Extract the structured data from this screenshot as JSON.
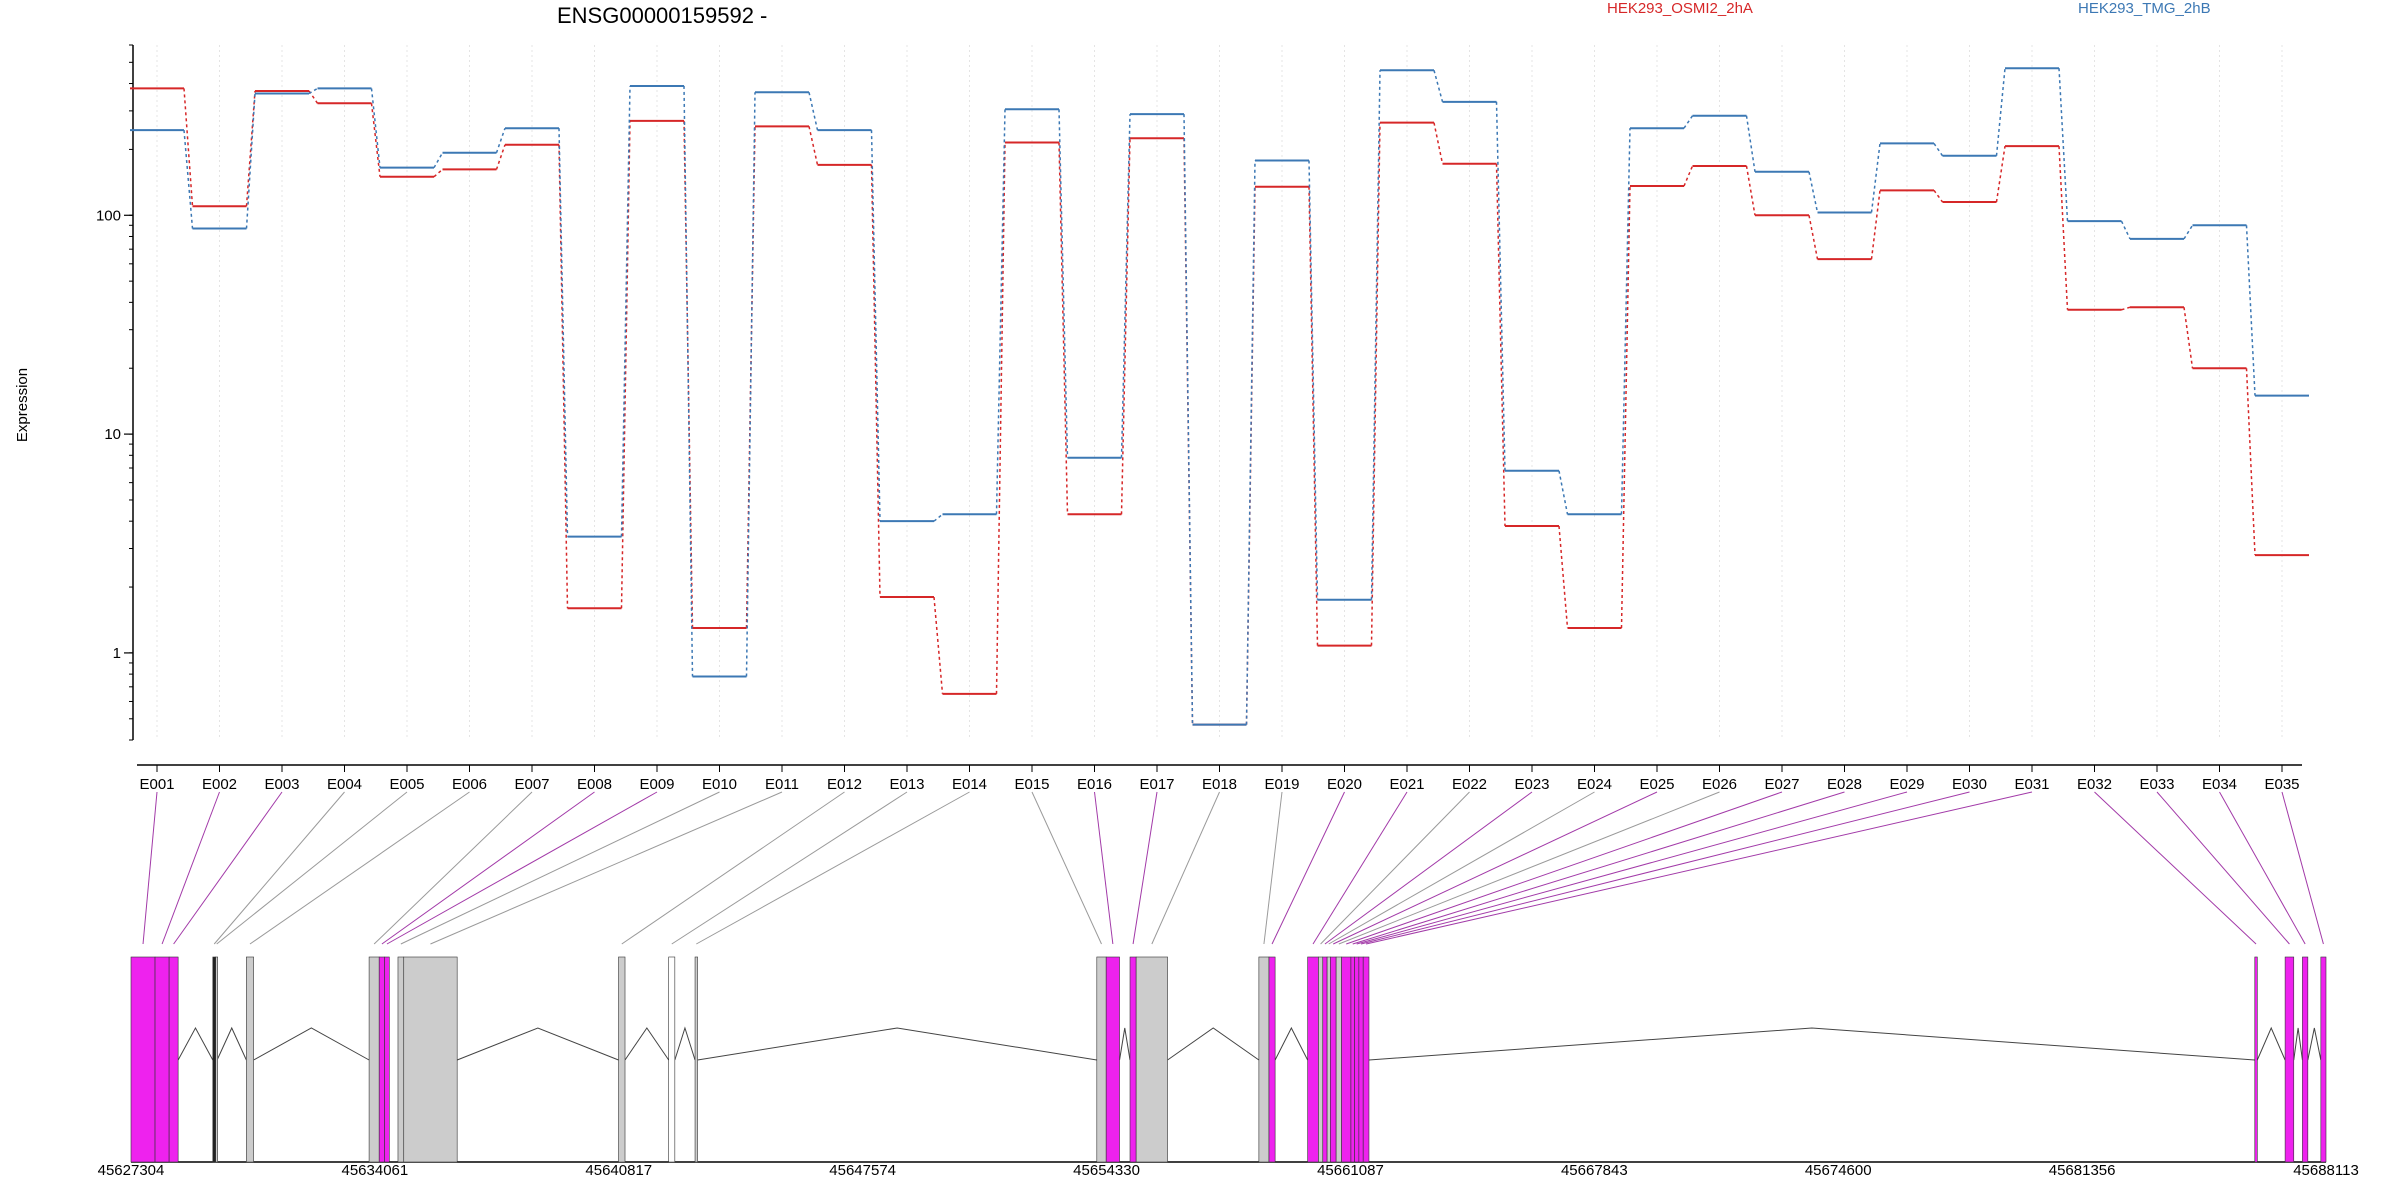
{
  "chart_data": {
    "type": "line",
    "title": "ENSG00000159592 -",
    "ylabel": "Expression",
    "xlabel": "",
    "y_scale": "log",
    "ylim": [
      0.4,
      600
    ],
    "yticks": [
      1,
      10,
      100
    ],
    "ytick_labels": [
      "1",
      "10",
      "100"
    ],
    "grid": "vertical dotted lines at each exon",
    "legend_placement": "top-right",
    "categories": [
      "E001",
      "E002",
      "E003",
      "E004",
      "E005",
      "E006",
      "E007",
      "E008",
      "E009",
      "E010",
      "E011",
      "E012",
      "E013",
      "E014",
      "E015",
      "E016",
      "E017",
      "E018",
      "E019",
      "E020",
      "E021",
      "E022",
      "E023",
      "E024",
      "E025",
      "E026",
      "E027",
      "E028",
      "E029",
      "E030",
      "E031",
      "E032",
      "E033",
      "E034",
      "E035"
    ],
    "series": [
      {
        "name": "HEK293_OSMI2_2hA",
        "color": "#d62728",
        "values": [
          380,
          110,
          370,
          325,
          150,
          162,
          210,
          1.6,
          270,
          1.3,
          255,
          170,
          1.8,
          0.65,
          215,
          4.3,
          225,
          0.47,
          135,
          1.08,
          265,
          172,
          3.8,
          1.3,
          136,
          168,
          100,
          63,
          130,
          115,
          207,
          37,
          38,
          20,
          2.8
        ]
      },
      {
        "name": "HEK293_TMG_2hB",
        "color": "#3c78b4",
        "values": [
          245,
          87,
          360,
          380,
          165,
          193,
          250,
          3.4,
          390,
          0.78,
          365,
          245,
          4.0,
          4.3,
          305,
          7.8,
          290,
          0.47,
          178,
          1.75,
          460,
          330,
          6.8,
          4.3,
          250,
          285,
          158,
          103,
          213,
          187,
          470,
          94,
          78,
          90,
          15
        ]
      }
    ],
    "gene_model": {
      "coordinate_range": [
        45627304,
        45688113
      ],
      "tick_labels": [
        "45627304",
        "45634061",
        "45640817",
        "45647574",
        "45654330",
        "45661087",
        "45667843",
        "45674600",
        "45681356",
        "45688113"
      ],
      "exons": [
        {
          "name": "E001",
          "start": 45627304,
          "end": 45627970,
          "color": "#ee22ee"
        },
        {
          "name": "E002",
          "start": 45627970,
          "end": 45628360,
          "color": "#ee22ee"
        },
        {
          "name": "E003",
          "start": 45628360,
          "end": 45628610,
          "color": "#ee22ee"
        },
        {
          "name": "E004",
          "start": 45629570,
          "end": 45629650,
          "color": "#222222"
        },
        {
          "name": "E005",
          "start": 45629650,
          "end": 45629690,
          "color": "#cccccc"
        },
        {
          "name": "E006",
          "start": 45630500,
          "end": 45630700,
          "color": "#cccccc"
        },
        {
          "name": "E007",
          "start": 45633900,
          "end": 45634180,
          "color": "#cccccc"
        },
        {
          "name": "E008",
          "start": 45634180,
          "end": 45634330,
          "color": "#ee22ee"
        },
        {
          "name": "E009",
          "start": 45634330,
          "end": 45634460,
          "color": "#ee22ee"
        },
        {
          "name": "E010",
          "start": 45634700,
          "end": 45634860,
          "color": "#cccccc"
        },
        {
          "name": "E011",
          "start": 45634860,
          "end": 45636340,
          "color": "#cccccc"
        },
        {
          "name": "E012",
          "start": 45640810,
          "end": 45640990,
          "color": "#cccccc"
        },
        {
          "name": "E013",
          "start": 45642200,
          "end": 45642370,
          "color": "#ffffff"
        },
        {
          "name": "E014",
          "start": 45642930,
          "end": 45643000,
          "color": "#cccccc"
        },
        {
          "name": "E015",
          "start": 45654060,
          "end": 45654320,
          "color": "#cccccc"
        },
        {
          "name": "E016",
          "start": 45654320,
          "end": 45654690,
          "color": "#ee22ee"
        },
        {
          "name": "E017",
          "start": 45654980,
          "end": 45655150,
          "color": "#ee22ee"
        },
        {
          "name": "E018",
          "start": 45655150,
          "end": 45656020,
          "color": "#cccccc"
        },
        {
          "name": "E019",
          "start": 45658550,
          "end": 45658830,
          "color": "#cccccc"
        },
        {
          "name": "E020",
          "start": 45658830,
          "end": 45659000,
          "color": "#ee22ee"
        },
        {
          "name": "E021",
          "start": 45659900,
          "end": 45660200,
          "color": "#ee22ee"
        },
        {
          "name": "E022",
          "start": 45660200,
          "end": 45660320,
          "color": "#cccccc"
        },
        {
          "name": "E023",
          "start": 45660320,
          "end": 45660440,
          "color": "#ee22ee"
        },
        {
          "name": "E024",
          "start": 45660440,
          "end": 45660530,
          "color": "#cccccc"
        },
        {
          "name": "E025",
          "start": 45660530,
          "end": 45660690,
          "color": "#ee22ee"
        },
        {
          "name": "E026",
          "start": 45660690,
          "end": 45660840,
          "color": "#cccccc"
        },
        {
          "name": "E027",
          "start": 45660840,
          "end": 45661100,
          "color": "#ee22ee"
        },
        {
          "name": "E028",
          "start": 45661100,
          "end": 45661200,
          "color": "#ee22ee"
        },
        {
          "name": "E029",
          "start": 45661200,
          "end": 45661320,
          "color": "#ee22ee"
        },
        {
          "name": "E030",
          "start": 45661320,
          "end": 45661440,
          "color": "#ee22ee"
        },
        {
          "name": "E031",
          "start": 45661440,
          "end": 45661600,
          "color": "#ee22ee"
        },
        {
          "name": "E032",
          "start": 45686140,
          "end": 45686210,
          "color": "#ee22ee"
        },
        {
          "name": "E033",
          "start": 45686980,
          "end": 45687220,
          "color": "#ee22ee"
        },
        {
          "name": "E034",
          "start": 45687460,
          "end": 45687610,
          "color": "#ee22ee"
        },
        {
          "name": "E035",
          "start": 45687970,
          "end": 45688113,
          "color": "#ee22ee"
        }
      ],
      "introns": [
        [
          45628610,
          45629570
        ],
        [
          45629690,
          45630500
        ],
        [
          45630700,
          45633900
        ],
        [
          45636340,
          45640810
        ],
        [
          45640990,
          45642200
        ],
        [
          45642370,
          45642930
        ],
        [
          45643000,
          45654060
        ],
        [
          45654690,
          45654980
        ],
        [
          45656020,
          45658550
        ],
        [
          45659000,
          45659900
        ],
        [
          45661600,
          45686140
        ],
        [
          45686210,
          45686980
        ],
        [
          45687220,
          45687460
        ],
        [
          45687610,
          45687970
        ]
      ]
    }
  }
}
